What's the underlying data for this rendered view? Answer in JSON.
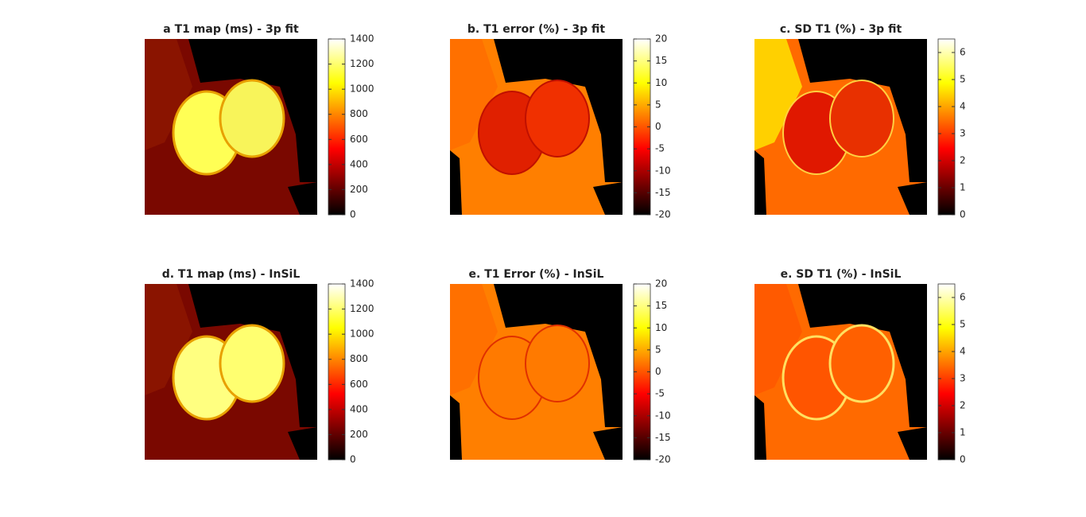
{
  "chart_data": [
    {
      "type": "image",
      "title": "a T1 map (ms) - 3p fit",
      "colormap": "hot",
      "ylim": [
        0,
        1400
      ],
      "yticks": [
        0,
        200,
        400,
        600,
        800,
        1000,
        1200,
        1400
      ]
    },
    {
      "type": "image",
      "title": "b. T1 error (%) - 3p fit",
      "colormap": "hot",
      "ylim": [
        -20,
        20
      ],
      "yticks": [
        -20,
        -15,
        -10,
        -5,
        0,
        5,
        10,
        15,
        20
      ]
    },
    {
      "type": "image",
      "title": "c. SD T1 (%) - 3p fit",
      "colormap": "hot",
      "ylim": [
        0,
        6.5
      ],
      "yticks": [
        0,
        1,
        2,
        3,
        4,
        5,
        6
      ]
    },
    {
      "type": "image",
      "title": "d. T1 map (ms) - InSiL",
      "colormap": "hot",
      "ylim": [
        0,
        1400
      ],
      "yticks": [
        0,
        200,
        400,
        600,
        800,
        1000,
        1200,
        1400
      ]
    },
    {
      "type": "image",
      "title": "e. T1 Error (%) - InSiL",
      "colormap": "hot",
      "ylim": [
        -20,
        20
      ],
      "yticks": [
        -20,
        -15,
        -10,
        -5,
        0,
        5,
        10,
        15,
        20
      ]
    },
    {
      "type": "image",
      "title": "e. SD T1 (%) - InSiL",
      "colormap": "hot",
      "ylim": [
        0,
        6.5
      ],
      "yticks": [
        0,
        1,
        2,
        3,
        4,
        5,
        6
      ]
    }
  ]
}
